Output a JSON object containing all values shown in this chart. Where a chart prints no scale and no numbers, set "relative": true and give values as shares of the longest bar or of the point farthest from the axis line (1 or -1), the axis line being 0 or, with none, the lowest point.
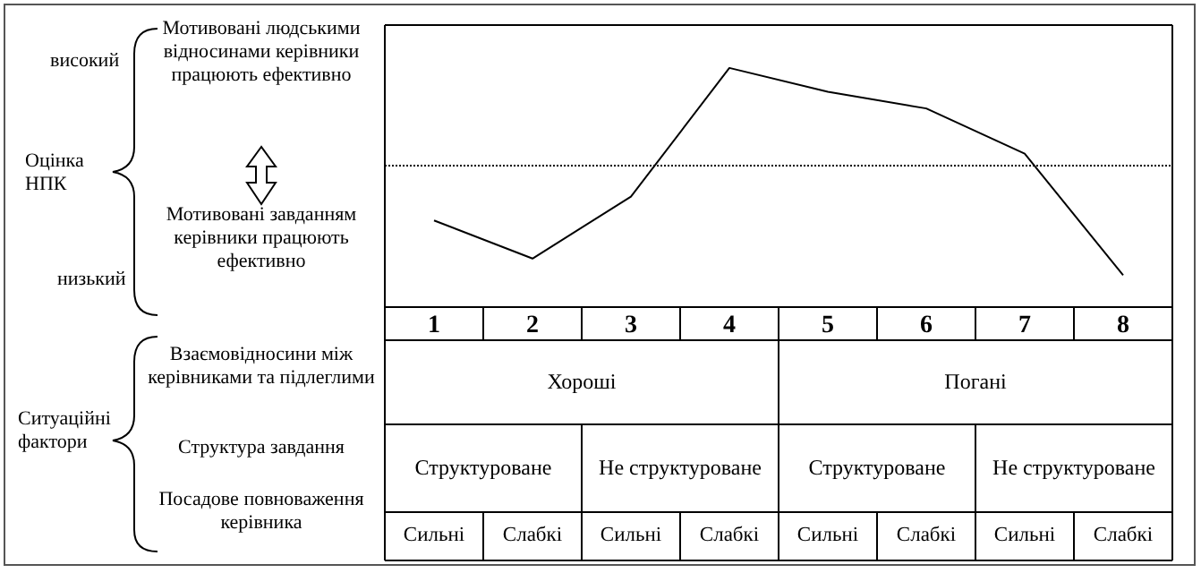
{
  "chart_data": {
    "type": "line",
    "relative": true,
    "categories": [
      "1",
      "2",
      "3",
      "4",
      "5",
      "6",
      "7",
      "8"
    ],
    "series": [
      {
        "color": "#000000",
        "values": [
          0.36,
          0.2,
          0.46,
          1,
          0.9,
          0.83,
          0.64,
          0.13
        ]
      }
    ],
    "ref_lines": [
      {
        "axis": "y",
        "value": 0.59,
        "color": "#000000",
        "line_style": "dotted"
      }
    ],
    "marker": "none",
    "grid": false,
    "annotations": [
      "високий",
      "Оцінка НПК",
      "низький",
      "Мотивовані людськими відносинами керівники працюють ефективно",
      "Мотивовані завданням керівники працюють ефективно",
      "Ситуаційні фактори",
      "Взаємовідносини між керівниками та підлеглими",
      "Структура завдання",
      "Посадове повноваження керівника",
      "Хороші",
      "Погані",
      "Структуроване",
      "Не структуроване",
      "Структуроване",
      "Не структуроване",
      "Сильні",
      "Слабкі",
      "Сильні",
      "Слабкі",
      "Сильні",
      "Слабкі",
      "Сильні",
      "Слабкі"
    ]
  }
}
